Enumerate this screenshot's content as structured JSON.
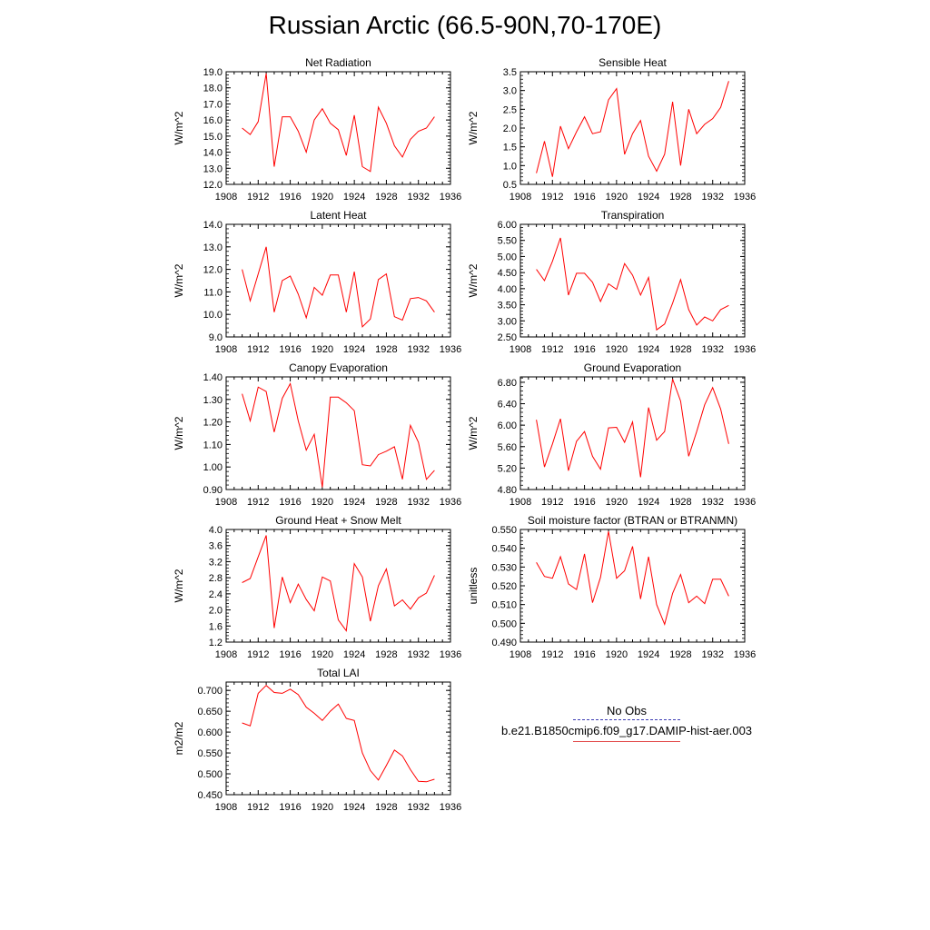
{
  "title": "Russian Arctic (66.5-90N,70-170E)",
  "legend": {
    "obs_label": "No Obs",
    "model_label": "b.e21.B1850cmip6.f09_g17.DAMIP-hist-aer.003",
    "obs_color": "#3b3bb3",
    "model_color": "#ff0000"
  },
  "chart_data": [
    {
      "type": "line",
      "title": "Net Radiation",
      "ylabel": "W/m^2",
      "xlim": [
        1908,
        1936
      ],
      "ylim": [
        12.0,
        19.0
      ],
      "xticks": [
        "1908",
        "1912",
        "1916",
        "1920",
        "1924",
        "1928",
        "1932",
        "1936"
      ],
      "yticks": [
        "12.0",
        "13.0",
        "14.0",
        "15.0",
        "16.0",
        "17.0",
        "18.0",
        "19.0"
      ],
      "x": [
        1910,
        1911,
        1912,
        1913,
        1914,
        1915,
        1916,
        1917,
        1918,
        1919,
        1920,
        1921,
        1922,
        1923,
        1924,
        1925,
        1926,
        1927,
        1928,
        1929,
        1930,
        1931,
        1932,
        1933,
        1934
      ],
      "series": [
        {
          "values": [
            15.5,
            15.1,
            15.9,
            18.9,
            13.1,
            16.2,
            16.2,
            15.3,
            14.0,
            16.0,
            16.7,
            15.8,
            15.4,
            13.8,
            16.3,
            13.1,
            12.8,
            16.8,
            15.8,
            14.4,
            13.7,
            14.8,
            15.3,
            15.5,
            16.2
          ]
        }
      ]
    },
    {
      "type": "line",
      "title": "Sensible Heat",
      "ylabel": "W/m^2",
      "xlim": [
        1908,
        1936
      ],
      "ylim": [
        0.5,
        3.5
      ],
      "xticks": [
        "1908",
        "1912",
        "1916",
        "1920",
        "1924",
        "1928",
        "1932",
        "1936"
      ],
      "yticks": [
        "0.5",
        "1.0",
        "1.5",
        "2.0",
        "2.5",
        "3.0",
        "3.5"
      ],
      "x": [
        1910,
        1911,
        1912,
        1913,
        1914,
        1915,
        1916,
        1917,
        1918,
        1919,
        1920,
        1921,
        1922,
        1923,
        1924,
        1925,
        1926,
        1927,
        1928,
        1929,
        1930,
        1931,
        1932,
        1933,
        1934
      ],
      "series": [
        {
          "values": [
            0.8,
            1.65,
            0.7,
            2.05,
            1.45,
            1.9,
            2.3,
            1.85,
            1.9,
            2.75,
            3.05,
            1.3,
            1.85,
            2.2,
            1.25,
            0.85,
            1.3,
            2.7,
            1.0,
            2.5,
            1.85,
            2.1,
            2.25,
            2.55,
            3.25
          ]
        }
      ]
    },
    {
      "type": "line",
      "title": "Latent Heat",
      "ylabel": "W/m^2",
      "xlim": [
        1908,
        1936
      ],
      "ylim": [
        9.0,
        14.0
      ],
      "xticks": [
        "1908",
        "1912",
        "1916",
        "1920",
        "1924",
        "1928",
        "1932",
        "1936"
      ],
      "yticks": [
        "9.0",
        "10.0",
        "11.0",
        "12.0",
        "13.0",
        "14.0"
      ],
      "x": [
        1910,
        1911,
        1912,
        1913,
        1914,
        1915,
        1916,
        1917,
        1918,
        1919,
        1920,
        1921,
        1922,
        1923,
        1924,
        1925,
        1926,
        1927,
        1928,
        1929,
        1930,
        1931,
        1932,
        1933,
        1934
      ],
      "series": [
        {
          "values": [
            12.0,
            10.6,
            11.8,
            13.0,
            10.1,
            11.5,
            11.7,
            10.9,
            9.85,
            11.2,
            10.85,
            11.75,
            11.75,
            10.1,
            11.9,
            9.45,
            9.8,
            11.55,
            11.8,
            9.9,
            9.75,
            10.7,
            10.75,
            10.6,
            10.1
          ]
        }
      ]
    },
    {
      "type": "line",
      "title": "Transpiration",
      "ylabel": "W/m^2",
      "xlim": [
        1908,
        1936
      ],
      "ylim": [
        2.5,
        6.0
      ],
      "xticks": [
        "1908",
        "1912",
        "1916",
        "1920",
        "1924",
        "1928",
        "1932",
        "1936"
      ],
      "yticks": [
        "2.50",
        "3.00",
        "3.50",
        "4.00",
        "4.50",
        "5.00",
        "5.50",
        "6.00"
      ],
      "x": [
        1910,
        1911,
        1912,
        1913,
        1914,
        1915,
        1916,
        1917,
        1918,
        1919,
        1920,
        1921,
        1922,
        1923,
        1924,
        1925,
        1926,
        1927,
        1928,
        1929,
        1930,
        1931,
        1932,
        1933,
        1934
      ],
      "series": [
        {
          "values": [
            4.6,
            4.25,
            4.85,
            5.58,
            3.8,
            4.48,
            4.48,
            4.2,
            3.6,
            4.15,
            3.98,
            4.78,
            4.42,
            3.8,
            4.35,
            2.72,
            2.9,
            3.55,
            4.28,
            3.35,
            2.87,
            3.12,
            3.0,
            3.35,
            3.48
          ]
        }
      ]
    },
    {
      "type": "line",
      "title": "Canopy Evaporation",
      "ylabel": "W/m^2",
      "xlim": [
        1908,
        1936
      ],
      "ylim": [
        0.9,
        1.4
      ],
      "xticks": [
        "1908",
        "1912",
        "1916",
        "1920",
        "1924",
        "1928",
        "1932",
        "1936"
      ],
      "yticks": [
        "0.90",
        "1.00",
        "1.10",
        "1.20",
        "1.30",
        "1.40"
      ],
      "x": [
        1910,
        1911,
        1912,
        1913,
        1914,
        1915,
        1916,
        1917,
        1918,
        1919,
        1920,
        1921,
        1922,
        1923,
        1924,
        1925,
        1926,
        1927,
        1928,
        1929,
        1930,
        1931,
        1932,
        1933,
        1934
      ],
      "series": [
        {
          "values": [
            1.325,
            1.205,
            1.355,
            1.335,
            1.155,
            1.305,
            1.37,
            1.205,
            1.075,
            1.145,
            0.91,
            1.31,
            1.31,
            1.285,
            1.25,
            1.01,
            1.005,
            1.055,
            1.07,
            1.09,
            0.945,
            1.185,
            1.11,
            0.945,
            0.985
          ]
        }
      ]
    },
    {
      "type": "line",
      "title": "Ground Evaporation",
      "ylabel": "W/m^2",
      "xlim": [
        1908,
        1936
      ],
      "ylim": [
        4.8,
        6.9
      ],
      "xticks": [
        "1908",
        "1912",
        "1916",
        "1920",
        "1924",
        "1928",
        "1932",
        "1936"
      ],
      "yticks": [
        "4.80",
        "5.20",
        "5.60",
        "6.00",
        "6.40",
        "6.80"
      ],
      "x": [
        1910,
        1911,
        1912,
        1913,
        1914,
        1915,
        1916,
        1917,
        1918,
        1919,
        1920,
        1921,
        1922,
        1923,
        1924,
        1925,
        1926,
        1927,
        1928,
        1929,
        1930,
        1931,
        1932,
        1933,
        1934
      ],
      "series": [
        {
          "values": [
            6.1,
            5.22,
            5.65,
            6.12,
            5.15,
            5.7,
            5.88,
            5.42,
            5.18,
            5.95,
            5.96,
            5.68,
            6.06,
            5.03,
            6.33,
            5.72,
            5.88,
            6.86,
            6.45,
            5.42,
            5.88,
            6.38,
            6.7,
            6.3,
            5.65
          ]
        }
      ]
    },
    {
      "type": "line",
      "title": "Ground Heat + Snow Melt",
      "ylabel": "W/m^2",
      "xlim": [
        1908,
        1936
      ],
      "ylim": [
        1.2,
        4.0
      ],
      "xticks": [
        "1908",
        "1912",
        "1916",
        "1920",
        "1924",
        "1928",
        "1932",
        "1936"
      ],
      "yticks": [
        "1.2",
        "1.6",
        "2.0",
        "2.4",
        "2.8",
        "3.2",
        "3.6",
        "4.0"
      ],
      "x": [
        1910,
        1911,
        1912,
        1913,
        1914,
        1915,
        1916,
        1917,
        1918,
        1919,
        1920,
        1921,
        1922,
        1923,
        1924,
        1925,
        1926,
        1927,
        1928,
        1929,
        1930,
        1931,
        1932,
        1933,
        1934
      ],
      "series": [
        {
          "values": [
            2.68,
            2.78,
            3.32,
            3.85,
            1.55,
            2.82,
            2.18,
            2.64,
            2.26,
            1.98,
            2.82,
            2.72,
            1.75,
            1.48,
            3.15,
            2.82,
            1.72,
            2.6,
            3.02,
            2.1,
            2.25,
            2.02,
            2.3,
            2.42,
            2.86
          ]
        }
      ]
    },
    {
      "type": "line",
      "title": "Soil moisture factor (BTRAN or BTRANMN)",
      "ylabel": "unitless",
      "xlim": [
        1908,
        1936
      ],
      "ylim": [
        0.49,
        0.55
      ],
      "xticks": [
        "1908",
        "1912",
        "1916",
        "1920",
        "1924",
        "1928",
        "1932",
        "1936"
      ],
      "yticks": [
        "0.490",
        "0.500",
        "0.510",
        "0.520",
        "0.530",
        "0.540",
        "0.550"
      ],
      "x": [
        1910,
        1911,
        1912,
        1913,
        1914,
        1915,
        1916,
        1917,
        1918,
        1919,
        1920,
        1921,
        1922,
        1923,
        1924,
        1925,
        1926,
        1927,
        1928,
        1929,
        1930,
        1931,
        1932,
        1933,
        1934
      ],
      "series": [
        {
          "values": [
            0.5325,
            0.525,
            0.524,
            0.5355,
            0.521,
            0.518,
            0.537,
            0.511,
            0.5245,
            0.549,
            0.524,
            0.528,
            0.541,
            0.513,
            0.5355,
            0.51,
            0.4995,
            0.516,
            0.526,
            0.511,
            0.5145,
            0.5105,
            0.5235,
            0.5235,
            0.5145
          ]
        }
      ]
    },
    {
      "type": "line",
      "title": "Total LAI",
      "ylabel": "m2/m2",
      "xlim": [
        1908,
        1936
      ],
      "ylim": [
        0.45,
        0.72
      ],
      "xticks": [
        "1908",
        "1912",
        "1916",
        "1920",
        "1924",
        "1928",
        "1932",
        "1936"
      ],
      "yticks": [
        "0.450",
        "0.500",
        "0.550",
        "0.600",
        "0.650",
        "0.700"
      ],
      "x": [
        1910,
        1911,
        1912,
        1913,
        1914,
        1915,
        1916,
        1917,
        1918,
        1919,
        1920,
        1921,
        1922,
        1923,
        1924,
        1925,
        1926,
        1927,
        1928,
        1929,
        1930,
        1931,
        1932,
        1933,
        1934
      ],
      "series": [
        {
          "values": [
            0.622,
            0.615,
            0.693,
            0.712,
            0.695,
            0.693,
            0.703,
            0.69,
            0.66,
            0.645,
            0.628,
            0.65,
            0.667,
            0.633,
            0.628,
            0.55,
            0.508,
            0.485,
            0.52,
            0.557,
            0.543,
            0.51,
            0.482,
            0.481,
            0.487
          ]
        }
      ]
    }
  ]
}
